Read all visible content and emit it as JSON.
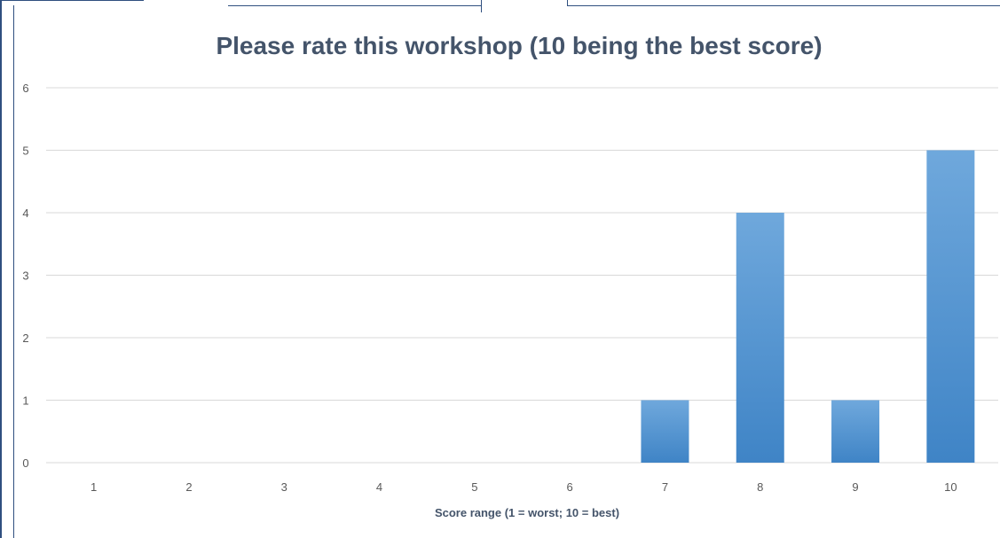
{
  "chart_data": {
    "type": "bar",
    "title": "Please rate this workshop (10 being the best score)",
    "xlabel": "Score range (1 = worst; 10 = best)",
    "ylabel": "",
    "categories": [
      "1",
      "2",
      "3",
      "4",
      "5",
      "6",
      "7",
      "8",
      "9",
      "10"
    ],
    "values": [
      0,
      0,
      0,
      0,
      0,
      0,
      1,
      4,
      1,
      5
    ],
    "ylim": [
      0,
      6
    ],
    "yticks": [
      "0",
      "1",
      "2",
      "3",
      "4",
      "5",
      "6"
    ],
    "grid": true,
    "legend": "none",
    "bar_color_top": "#6fa8dc",
    "bar_color_bottom": "#3f84c6",
    "grid_color": "#d9d9d9",
    "title_color": "#44546a",
    "frame_color": "#2f4f7f"
  }
}
